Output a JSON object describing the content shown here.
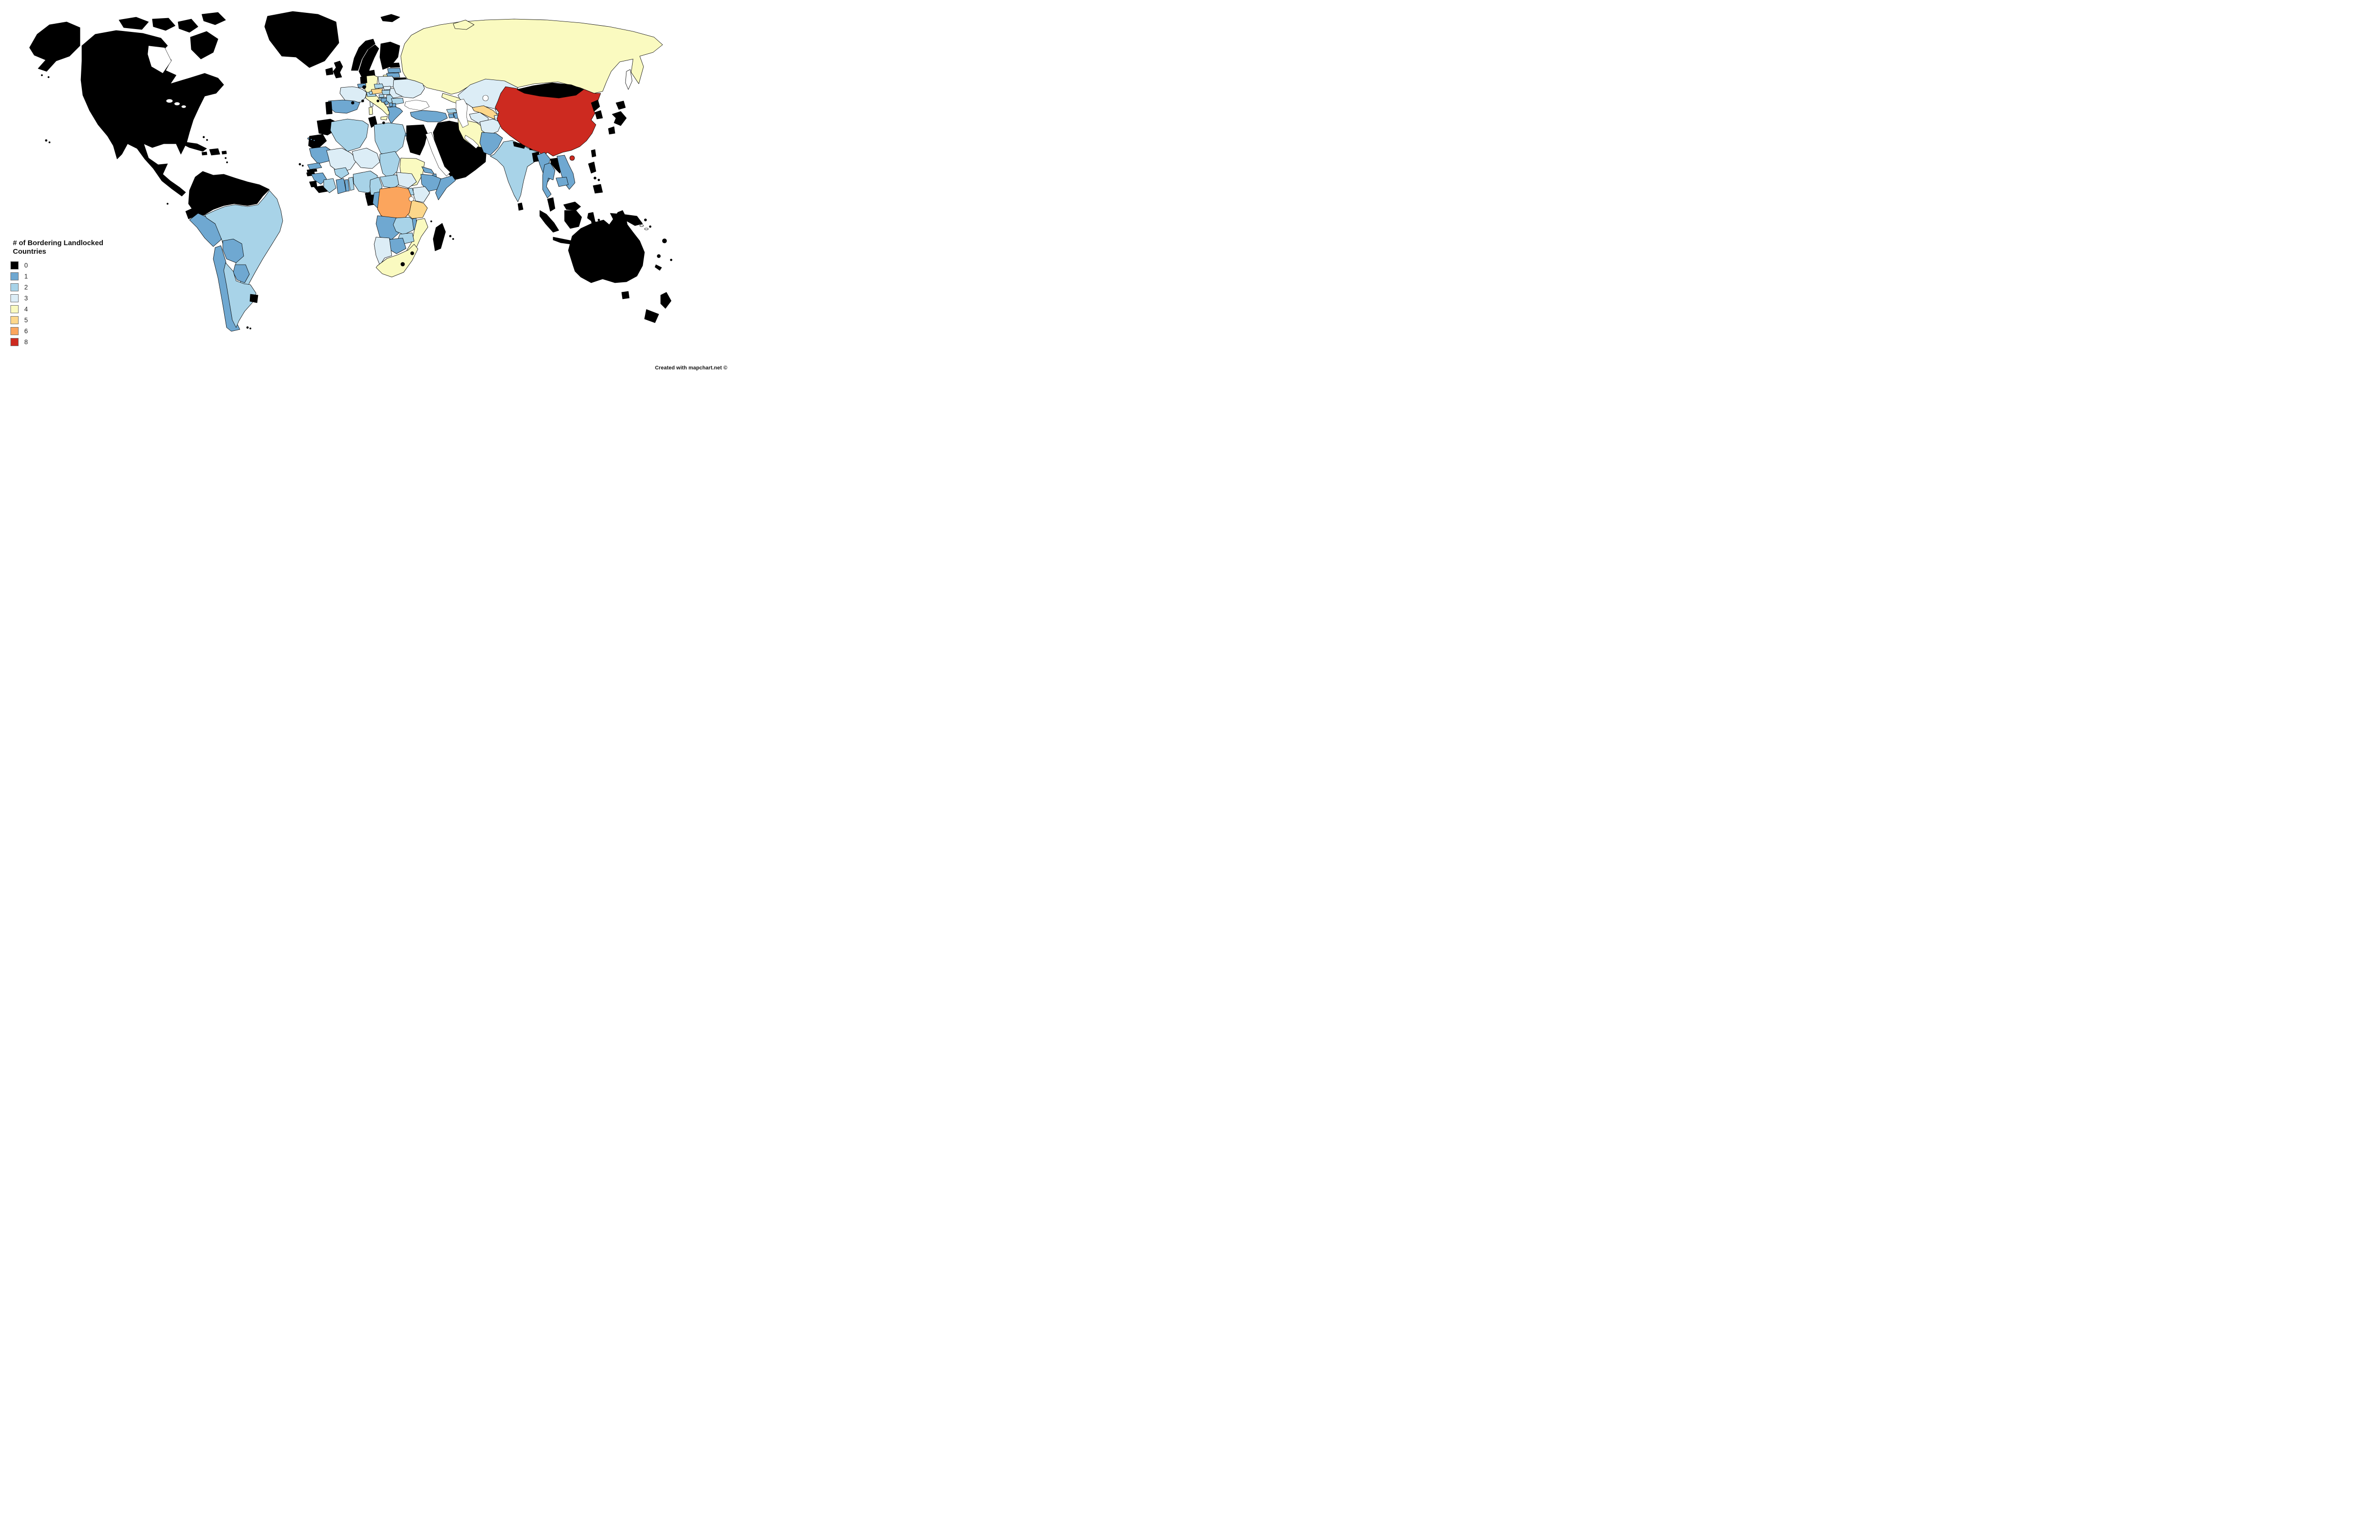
{
  "legend": {
    "title": "# of Bordering Landlocked Countries",
    "items": [
      {
        "label": "0",
        "value": 0,
        "color": "#000000"
      },
      {
        "label": "1",
        "value": 1,
        "color": "#6fa8d1"
      },
      {
        "label": "2",
        "value": 2,
        "color": "#a8d3e8"
      },
      {
        "label": "3",
        "value": 3,
        "color": "#dcedf6"
      },
      {
        "label": "4",
        "value": 4,
        "color": "#fafac0"
      },
      {
        "label": "5",
        "value": 5,
        "color": "#fdd78b"
      },
      {
        "label": "6",
        "value": 6,
        "color": "#fba55d"
      },
      {
        "label": "8",
        "value": 8,
        "color": "#cd2a20"
      }
    ]
  },
  "attribution": {
    "text": "Created with mapchart.net ©"
  },
  "map": {
    "no_data_color": "#ffffff",
    "border_color": "#000000",
    "regions": [
      {
        "id": "north-america",
        "name": "North America (Canada, USA, Mexico, Central America)",
        "value": 0
      },
      {
        "id": "caribbean-islands",
        "name": "Caribbean Islands",
        "value": 0
      },
      {
        "id": "hawaii",
        "name": "Hawaii",
        "value": 0
      },
      {
        "id": "greenland",
        "name": "Greenland",
        "value": 0
      },
      {
        "id": "iceland",
        "name": "Iceland",
        "value": 0
      },
      {
        "id": "svalbard",
        "name": "Svalbard",
        "value": 0
      },
      {
        "id": "colombia-venezuela-guianas",
        "name": "Colombia, Venezuela, Guyana, Suriname, French Guiana",
        "value": 0
      },
      {
        "id": "ecuador",
        "name": "Ecuador",
        "value": 0
      },
      {
        "id": "peru",
        "name": "Peru",
        "value": 1
      },
      {
        "id": "brazil",
        "name": "Brazil",
        "value": 2
      },
      {
        "id": "bolivia",
        "name": "Bolivia",
        "value": 1
      },
      {
        "id": "paraguay",
        "name": "Paraguay",
        "value": 1
      },
      {
        "id": "chile",
        "name": "Chile",
        "value": 1
      },
      {
        "id": "argentina",
        "name": "Argentina",
        "value": 2
      },
      {
        "id": "uruguay",
        "name": "Uruguay",
        "value": 0
      },
      {
        "id": "falkland-islands",
        "name": "Falkland Islands",
        "value": 0
      },
      {
        "id": "united-kingdom",
        "name": "United Kingdom",
        "value": 0
      },
      {
        "id": "ireland",
        "name": "Ireland",
        "value": 0
      },
      {
        "id": "norway",
        "name": "Norway",
        "value": 0
      },
      {
        "id": "sweden",
        "name": "Sweden",
        "value": 0
      },
      {
        "id": "finland",
        "name": "Finland",
        "value": 0
      },
      {
        "id": "denmark",
        "name": "Denmark",
        "value": 0
      },
      {
        "id": "estonia",
        "name": "Estonia",
        "value": 0
      },
      {
        "id": "latvia",
        "name": "Latvia",
        "value": 1
      },
      {
        "id": "lithuania",
        "name": "Lithuania",
        "value": 1
      },
      {
        "id": "belarus",
        "name": "Belarus",
        "value": 0
      },
      {
        "id": "poland",
        "name": "Poland",
        "value": 3
      },
      {
        "id": "germany",
        "name": "Germany",
        "value": 4
      },
      {
        "id": "netherlands",
        "name": "Netherlands",
        "value": 0
      },
      {
        "id": "belgium",
        "name": "Belgium",
        "value": 1
      },
      {
        "id": "luxembourg",
        "name": "Luxembourg",
        "value": 0
      },
      {
        "id": "france",
        "name": "France",
        "value": 3
      },
      {
        "id": "andorra",
        "name": "Andorra",
        "value": 0
      },
      {
        "id": "monaco",
        "name": "Monaco",
        "value": 0
      },
      {
        "id": "spain",
        "name": "Spain",
        "value": 1
      },
      {
        "id": "portugal",
        "name": "Portugal",
        "value": 0
      },
      {
        "id": "italy",
        "name": "Italy",
        "value": 4
      },
      {
        "id": "san-marino",
        "name": "San Marino",
        "value": 0
      },
      {
        "id": "malta",
        "name": "Malta",
        "value": 0
      },
      {
        "id": "switzerland",
        "name": "Switzerland",
        "value": 2
      },
      {
        "id": "liechtenstein",
        "name": "Liechtenstein",
        "value": 2
      },
      {
        "id": "austria",
        "name": "Austria",
        "value": 5
      },
      {
        "id": "czechia",
        "name": "Czechia",
        "value": 2
      },
      {
        "id": "slovakia",
        "name": "Slovakia",
        "value": 3
      },
      {
        "id": "hungary",
        "name": "Hungary",
        "value": 2
      },
      {
        "id": "slovenia",
        "name": "Slovenia",
        "value": 2
      },
      {
        "id": "croatia",
        "name": "Croatia",
        "value": 2
      },
      {
        "id": "bosnia-herzegovina",
        "name": "Bosnia and Herzegovina",
        "value": 1
      },
      {
        "id": "serbia",
        "name": "Serbia",
        "value": 2
      },
      {
        "id": "montenegro",
        "name": "Montenegro",
        "value": 1
      },
      {
        "id": "kosovo",
        "name": "Kosovo",
        "value": 1
      },
      {
        "id": "albania",
        "name": "Albania",
        "value": 2
      },
      {
        "id": "north-macedonia",
        "name": "North Macedonia",
        "value": 1
      },
      {
        "id": "greece",
        "name": "Greece",
        "value": 1
      },
      {
        "id": "romania",
        "name": "Romania",
        "value": 3
      },
      {
        "id": "bulgaria",
        "name": "Bulgaria",
        "value": 2
      },
      {
        "id": "moldova",
        "name": "Moldova",
        "value": "none"
      },
      {
        "id": "ukraine",
        "name": "Ukraine",
        "value": 3
      },
      {
        "id": "russia",
        "name": "Russia",
        "value": 4
      },
      {
        "id": "turkey",
        "name": "Turkey",
        "value": 1
      },
      {
        "id": "cyprus",
        "name": "Cyprus",
        "value": 0
      },
      {
        "id": "georgia",
        "name": "Georgia",
        "value": 2
      },
      {
        "id": "armenia",
        "name": "Armenia",
        "value": 1
      },
      {
        "id": "azerbaijan",
        "name": "Azerbaijan",
        "value": 1
      },
      {
        "id": "middle-east",
        "name": "Syria, Iraq, Jordan, Israel, Lebanon, Saudi Arabia, Kuwait, Qatar, UAE, Oman, Yemen",
        "value": 0
      },
      {
        "id": "iran",
        "name": "Iran",
        "value": 4
      },
      {
        "id": "turkmenistan",
        "name": "Turkmenistan",
        "value": 3
      },
      {
        "id": "uzbekistan",
        "name": "Uzbekistan",
        "value": 5
      },
      {
        "id": "kazakhstan",
        "name": "Kazakhstan",
        "value": 3
      },
      {
        "id": "kyrgyzstan",
        "name": "Kyrgyzstan",
        "value": 3
      },
      {
        "id": "tajikistan",
        "name": "Tajikistan",
        "value": 3
      },
      {
        "id": "afghanistan",
        "name": "Afghanistan",
        "value": 3
      },
      {
        "id": "pakistan",
        "name": "Pakistan",
        "value": 1
      },
      {
        "id": "india",
        "name": "India",
        "value": 2
      },
      {
        "id": "nepal",
        "name": "Nepal",
        "value": 0
      },
      {
        "id": "bhutan",
        "name": "Bhutan",
        "value": 0
      },
      {
        "id": "bangladesh",
        "name": "Bangladesh",
        "value": 0
      },
      {
        "id": "sri-lanka",
        "name": "Sri Lanka",
        "value": 0
      },
      {
        "id": "china",
        "name": "China",
        "value": 8
      },
      {
        "id": "mongolia",
        "name": "Mongolia",
        "value": 0
      },
      {
        "id": "north-korea",
        "name": "North Korea",
        "value": 0
      },
      {
        "id": "south-korea",
        "name": "South Korea",
        "value": 0
      },
      {
        "id": "japan",
        "name": "Japan",
        "value": 0
      },
      {
        "id": "taiwan",
        "name": "Taiwan",
        "value": 0
      },
      {
        "id": "sakhalin",
        "name": "Sakhalin",
        "value": "none"
      },
      {
        "id": "myanmar",
        "name": "Myanmar",
        "value": 1
      },
      {
        "id": "laos",
        "name": "Laos",
        "value": 0
      },
      {
        "id": "thailand",
        "name": "Thailand",
        "value": 1
      },
      {
        "id": "vietnam",
        "name": "Vietnam",
        "value": 1
      },
      {
        "id": "cambodia",
        "name": "Cambodia",
        "value": 1
      },
      {
        "id": "malaysia",
        "name": "Malaysia",
        "value": 0
      },
      {
        "id": "indonesia",
        "name": "Indonesia",
        "value": 0
      },
      {
        "id": "philippines",
        "name": "Philippines",
        "value": 0
      },
      {
        "id": "papua-new-guinea",
        "name": "Papua New Guinea",
        "value": 0
      },
      {
        "id": "solomon-islands",
        "name": "Solomon Islands",
        "value": "none"
      },
      {
        "id": "australia",
        "name": "Australia",
        "value": 0
      },
      {
        "id": "new-zealand",
        "name": "New Zealand",
        "value": 0
      },
      {
        "id": "pacific-islands",
        "name": "Pacific Islands (Fiji, Vanuatu, New Caledonia)",
        "value": 0
      },
      {
        "id": "morocco",
        "name": "Morocco",
        "value": 0
      },
      {
        "id": "western-sahara",
        "name": "Western Sahara",
        "value": 0
      },
      {
        "id": "algeria",
        "name": "Algeria",
        "value": 2
      },
      {
        "id": "tunisia",
        "name": "Tunisia",
        "value": 0
      },
      {
        "id": "libya",
        "name": "Libya",
        "value": 2
      },
      {
        "id": "egypt",
        "name": "Egypt",
        "value": 0
      },
      {
        "id": "canary-islands",
        "name": "Canary Islands",
        "value": 1
      },
      {
        "id": "cape-verde",
        "name": "Cape Verde",
        "value": 0
      },
      {
        "id": "mauritania",
        "name": "Mauritania",
        "value": 1
      },
      {
        "id": "mali",
        "name": "Mali",
        "value": 3
      },
      {
        "id": "niger",
        "name": "Niger",
        "value": 3
      },
      {
        "id": "chad",
        "name": "Chad",
        "value": 2
      },
      {
        "id": "sudan",
        "name": "Sudan",
        "value": 4
      },
      {
        "id": "eritrea",
        "name": "Eritrea",
        "value": 1
      },
      {
        "id": "djibouti",
        "name": "Djibouti",
        "value": 1
      },
      {
        "id": "ethiopia",
        "name": "Ethiopia",
        "value": 1
      },
      {
        "id": "somalia",
        "name": "Somalia",
        "value": 1
      },
      {
        "id": "senegal",
        "name": "Senegal",
        "value": 1
      },
      {
        "id": "gambia",
        "name": "Gambia",
        "value": 0
      },
      {
        "id": "guinea-bissau",
        "name": "Guinea-Bissau",
        "value": 0
      },
      {
        "id": "guinea",
        "name": "Guinea",
        "value": 1
      },
      {
        "id": "sierra-leone",
        "name": "Sierra Leone",
        "value": 0
      },
      {
        "id": "liberia",
        "name": "Liberia",
        "value": 0
      },
      {
        "id": "ivory-coast",
        "name": "Ivory Coast",
        "value": 2
      },
      {
        "id": "burkina-faso",
        "name": "Burkina Faso",
        "value": 2
      },
      {
        "id": "ghana",
        "name": "Ghana",
        "value": 1
      },
      {
        "id": "togo",
        "name": "Togo",
        "value": 1
      },
      {
        "id": "benin",
        "name": "Benin",
        "value": 2
      },
      {
        "id": "nigeria",
        "name": "Nigeria",
        "value": 2
      },
      {
        "id": "cameroon",
        "name": "Cameroon",
        "value": 2
      },
      {
        "id": "central-african-republic",
        "name": "Central African Republic",
        "value": 2
      },
      {
        "id": "south-sudan",
        "name": "South Sudan",
        "value": 3
      },
      {
        "id": "kenya",
        "name": "Kenya",
        "value": 3
      },
      {
        "id": "uganda",
        "name": "Uganda",
        "value": 2
      },
      {
        "id": "rwanda",
        "name": "Rwanda",
        "value": 1
      },
      {
        "id": "burundi",
        "name": "Burundi",
        "value": 1
      },
      {
        "id": "tanzania",
        "name": "Tanzania",
        "value": 5
      },
      {
        "id": "gabon",
        "name": "Gabon",
        "value": 0
      },
      {
        "id": "equatorial-guinea",
        "name": "Equatorial Guinea",
        "value": 0
      },
      {
        "id": "congo",
        "name": "Republic of the Congo",
        "value": 1
      },
      {
        "id": "dr-congo",
        "name": "DR Congo",
        "value": 6
      },
      {
        "id": "angola",
        "name": "Angola",
        "value": 1
      },
      {
        "id": "zambia",
        "name": "Zambia",
        "value": 2
      },
      {
        "id": "malawi",
        "name": "Malawi",
        "value": 1
      },
      {
        "id": "mozambique",
        "name": "Mozambique",
        "value": 4
      },
      {
        "id": "zimbabwe",
        "name": "Zimbabwe",
        "value": 2
      },
      {
        "id": "botswana",
        "name": "Botswana",
        "value": 1
      },
      {
        "id": "namibia",
        "name": "Namibia",
        "value": 3
      },
      {
        "id": "south-africa",
        "name": "South Africa",
        "value": 4
      },
      {
        "id": "lesotho",
        "name": "Lesotho",
        "value": 0
      },
      {
        "id": "eswatini",
        "name": "Eswatini",
        "value": 0
      },
      {
        "id": "madagascar",
        "name": "Madagascar",
        "value": 0
      },
      {
        "id": "indian-ocean-islands",
        "name": "Comoros, Mauritius, Reunion",
        "value": 0
      }
    ]
  }
}
